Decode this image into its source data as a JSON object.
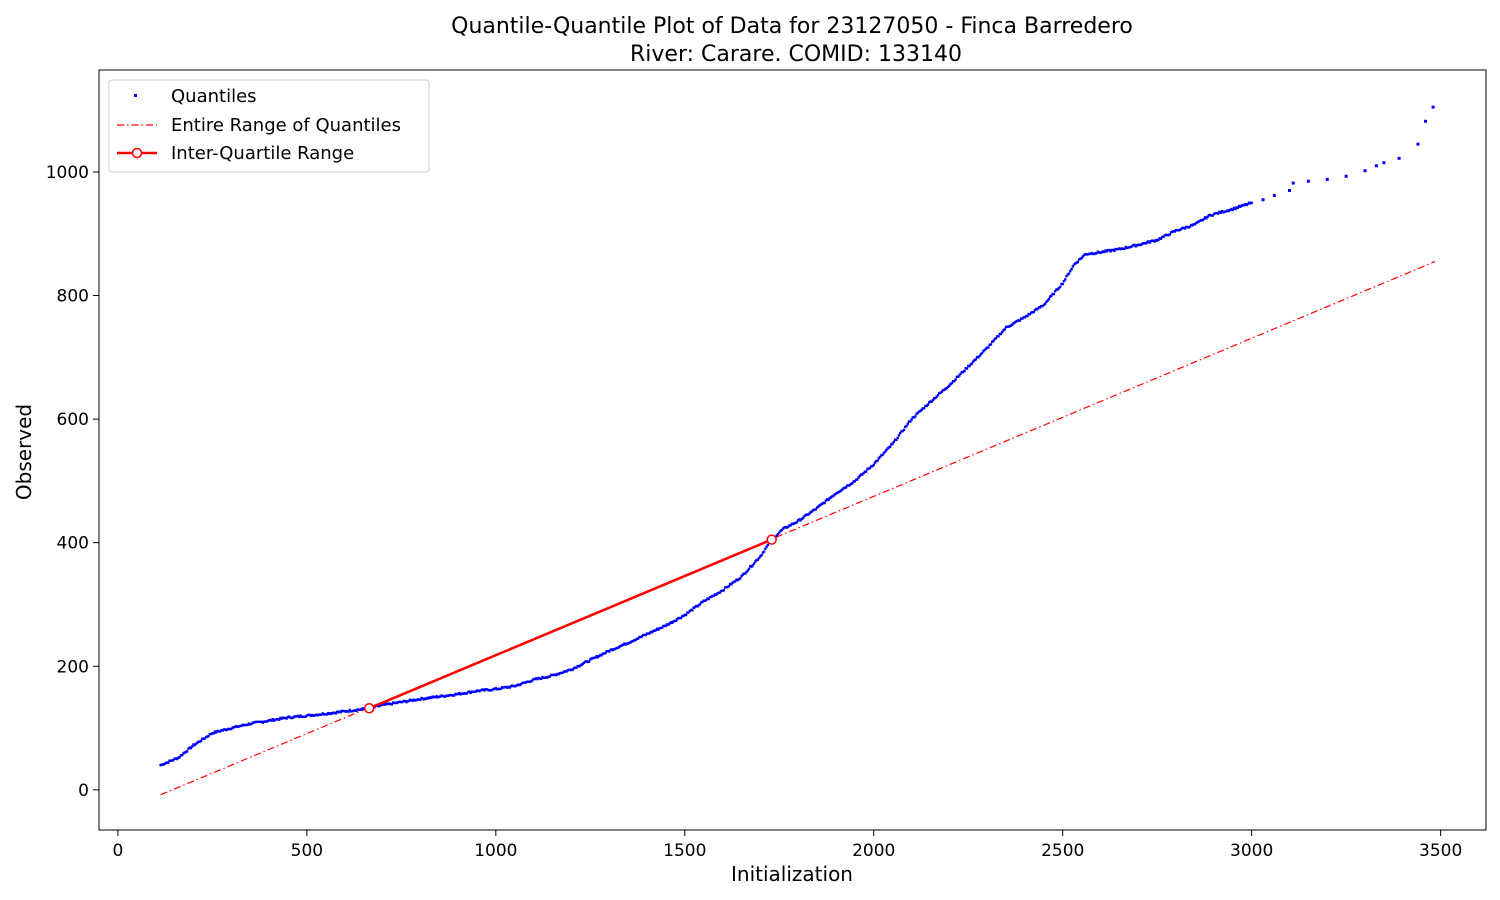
{
  "chart_data": {
    "type": "scatter",
    "title": "Quantile-Quantile Plot of Data for 23127050 - Finca Barredero",
    "subtitle": "River: Carare. COMID: 133140",
    "xlabel": "Initialization",
    "ylabel": "Observed",
    "xlim": [
      -50,
      3620
    ],
    "ylim": [
      -65,
      1165
    ],
    "xticks": [
      0,
      500,
      1000,
      1500,
      2000,
      2500,
      3000,
      3500
    ],
    "yticks": [
      0,
      200,
      400,
      600,
      800,
      1000
    ],
    "grid": false,
    "legend_position": "top-left",
    "colors": {
      "quantiles": "#0000ff",
      "lines": "#ff0000"
    },
    "series": [
      {
        "name": "Quantiles",
        "style": "points",
        "color": "#0000ff",
        "curve_points": [
          [
            113,
            40
          ],
          [
            160,
            52
          ],
          [
            200,
            72
          ],
          [
            250,
            92
          ],
          [
            300,
            100
          ],
          [
            350,
            107
          ],
          [
            400,
            112
          ],
          [
            450,
            117
          ],
          [
            500,
            120
          ],
          [
            560,
            124
          ],
          [
            600,
            127
          ],
          [
            665,
            132
          ],
          [
            700,
            137
          ],
          [
            760,
            143
          ],
          [
            800,
            147
          ],
          [
            850,
            151
          ],
          [
            900,
            155
          ],
          [
            950,
            160
          ],
          [
            1000,
            163
          ],
          [
            1050,
            168
          ],
          [
            1100,
            178
          ],
          [
            1150,
            185
          ],
          [
            1200,
            195
          ],
          [
            1250,
            210
          ],
          [
            1300,
            225
          ],
          [
            1350,
            238
          ],
          [
            1400,
            252
          ],
          [
            1450,
            266
          ],
          [
            1500,
            283
          ],
          [
            1550,
            305
          ],
          [
            1600,
            323
          ],
          [
            1650,
            345
          ],
          [
            1700,
            378
          ],
          [
            1730,
            405
          ],
          [
            1760,
            422
          ],
          [
            1800,
            435
          ],
          [
            1850,
            456
          ],
          [
            1900,
            480
          ],
          [
            1950,
            500
          ],
          [
            2000,
            527
          ],
          [
            2050,
            560
          ],
          [
            2100,
            600
          ],
          [
            2150,
            628
          ],
          [
            2200,
            655
          ],
          [
            2250,
            685
          ],
          [
            2300,
            715
          ],
          [
            2350,
            748
          ],
          [
            2400,
            765
          ],
          [
            2450,
            785
          ],
          [
            2500,
            820
          ],
          [
            2530,
            850
          ],
          [
            2560,
            867
          ],
          [
            2600,
            870
          ],
          [
            2650,
            875
          ],
          [
            2700,
            882
          ],
          [
            2750,
            890
          ],
          [
            2800,
            905
          ],
          [
            2850,
            915
          ],
          [
            2890,
            930
          ],
          [
            2950,
            940
          ],
          [
            3000,
            950
          ]
        ],
        "tail_points": [
          [
            3030,
            955
          ],
          [
            3060,
            962
          ],
          [
            3100,
            970
          ],
          [
            3110,
            982
          ],
          [
            3150,
            985
          ],
          [
            3200,
            988
          ],
          [
            3250,
            993
          ],
          [
            3300,
            1002
          ],
          [
            3330,
            1010
          ],
          [
            3350,
            1015
          ],
          [
            3390,
            1022
          ],
          [
            3440,
            1045
          ],
          [
            3460,
            1082
          ],
          [
            3480,
            1105
          ]
        ]
      },
      {
        "name": "Entire Range of Quantiles",
        "style": "dash-dot",
        "color": "#ff0000",
        "points": [
          [
            113,
            -8
          ],
          [
            3485,
            855
          ]
        ]
      },
      {
        "name": "Inter-Quartile Range",
        "style": "line-with-circle-markers",
        "color": "#ff0000",
        "points": [
          [
            665,
            132
          ],
          [
            1730,
            405
          ]
        ]
      }
    ]
  }
}
